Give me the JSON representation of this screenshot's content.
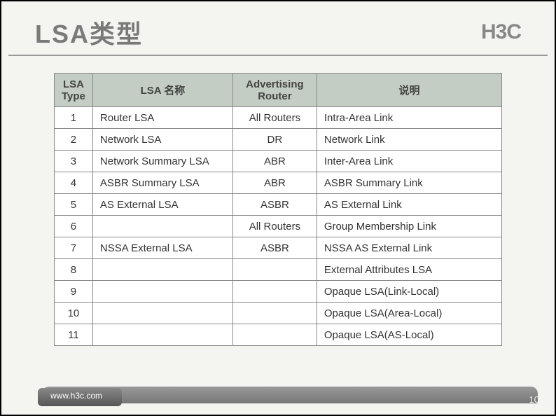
{
  "slide": {
    "title": "LSA类型",
    "logo": "H3C"
  },
  "table": {
    "headers": {
      "col1": "LSA Type",
      "col2": "LSA 名称",
      "col3": "Advertising Router",
      "col4": "说明"
    },
    "rows": [
      {
        "type": "1",
        "name": "Router LSA",
        "router": "All Routers",
        "desc": "Intra-Area Link"
      },
      {
        "type": "2",
        "name": "Network LSA",
        "router": "DR",
        "desc": "Network Link"
      },
      {
        "type": "3",
        "name": "Network Summary LSA",
        "router": "ABR",
        "desc": "Inter-Area  Link"
      },
      {
        "type": "4",
        "name": "ASBR Summary LSA",
        "router": "ABR",
        "desc": "ASBR Summary Link"
      },
      {
        "type": "5",
        "name": "AS External LSA",
        "router": "ASBR",
        "desc": "AS External Link"
      },
      {
        "type": "6",
        "name": "",
        "router": "All Routers",
        "desc": "Group Membership Link"
      },
      {
        "type": "7",
        "name": "NSSA External LSA",
        "router": "ASBR",
        "desc": "NSSA AS External Link"
      },
      {
        "type": "8",
        "name": "",
        "router": "",
        "desc": "External Attributes LSA"
      },
      {
        "type": "9",
        "name": "",
        "router": "",
        "desc": "Opaque LSA(Link-Local)"
      },
      {
        "type": "10",
        "name": "",
        "router": "",
        "desc": "Opaque LSA(Area-Local)"
      },
      {
        "type": "11",
        "name": "",
        "router": "",
        "desc": "Opaque LSA(AS-Local)"
      }
    ]
  },
  "footer": {
    "url": "www.h3c.com",
    "page": "10"
  },
  "style": {
    "header_bg": "#c4cdc4",
    "border_color": "#888888",
    "title_color": "#7a7a7a",
    "slide_bg": "#f4f4f0",
    "font_body": 15,
    "font_title": 36
  }
}
